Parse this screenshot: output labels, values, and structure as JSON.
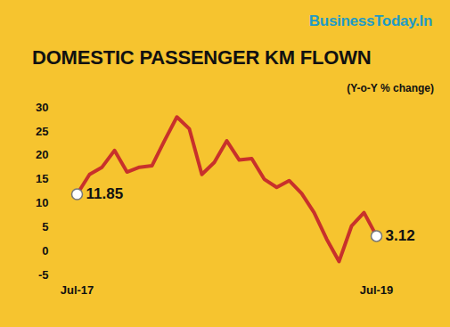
{
  "chart_data": {
    "type": "line",
    "source": "BusinessToday.In",
    "title": "DOMESTIC PASSENGER KM FLOWN",
    "subtitle": "(Y-o-Y % change)",
    "categories": [
      "Jul-17",
      null,
      null,
      null,
      null,
      null,
      null,
      null,
      null,
      null,
      null,
      null,
      null,
      null,
      null,
      null,
      null,
      null,
      null,
      null,
      null,
      null,
      null,
      null,
      "Jul-19"
    ],
    "values": [
      11.85,
      16,
      17.5,
      21,
      16.5,
      17.5,
      17.8,
      23,
      28,
      25.5,
      16,
      18.5,
      23,
      19,
      19.3,
      15,
      13.3,
      14.7,
      12,
      8,
      2.5,
      -2.2,
      5.2,
      8,
      3.12
    ],
    "color": "#c8312b",
    "ylim": [
      -5,
      30
    ],
    "yticks": [
      -5,
      0,
      5,
      10,
      15,
      20,
      25,
      30
    ],
    "grid": false,
    "annotations": [
      {
        "index": 0,
        "text": "11.85"
      },
      {
        "index": 24,
        "text": "3.12"
      }
    ]
  }
}
